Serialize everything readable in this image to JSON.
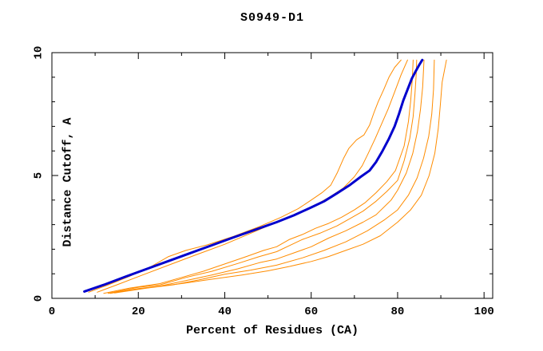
{
  "window": {
    "background": "#ffffff"
  },
  "chart_data": {
    "type": "line",
    "title": "S0949-D1",
    "xlabel": "Percent of Residues (CA)",
    "ylabel": "Distance Cutoff, A",
    "xlim": [
      0,
      102
    ],
    "ylim": [
      0,
      10
    ],
    "grid": false,
    "legend": "none",
    "axis_color": "#000000",
    "x_major_ticks": [
      0,
      20,
      40,
      60,
      80,
      100
    ],
    "x_tick_labels": [
      "0",
      "20",
      "40",
      "60",
      "80",
      "100"
    ],
    "x_minor_ticks": [
      10,
      30,
      50,
      70,
      90
    ],
    "y_major_ticks": [
      0,
      5,
      10
    ],
    "y_tick_labels": [
      "0",
      "5",
      "10"
    ],
    "y_minor_ticks": [
      1,
      2,
      3,
      4,
      6,
      7,
      8,
      9
    ],
    "series": [
      {
        "name": "orange-model-1",
        "color": "#FF8C00",
        "stroke_width": 1,
        "points": [
          [
            8.5,
            0.25
          ],
          [
            13,
            0.55
          ],
          [
            18,
            0.9
          ],
          [
            23,
            1.3
          ],
          [
            27,
            1.7
          ],
          [
            31,
            1.95
          ],
          [
            36,
            2.18
          ],
          [
            42,
            2.52
          ],
          [
            48,
            2.92
          ],
          [
            53,
            3.3
          ],
          [
            57,
            3.65
          ],
          [
            60,
            4.0
          ],
          [
            62.5,
            4.3
          ],
          [
            64.5,
            4.6
          ],
          [
            66,
            5.1
          ],
          [
            67.5,
            5.7
          ],
          [
            68.7,
            6.1
          ],
          [
            70.5,
            6.45
          ],
          [
            72.2,
            6.65
          ],
          [
            73.5,
            7.05
          ],
          [
            74.5,
            7.55
          ],
          [
            75.5,
            8.0
          ],
          [
            76.8,
            8.5
          ],
          [
            78,
            9.0
          ],
          [
            79.3,
            9.4
          ],
          [
            80.8,
            9.7
          ]
        ]
      },
      {
        "name": "orange-model-2",
        "color": "#FF8C00",
        "stroke_width": 1,
        "points": [
          [
            10.5,
            0.25
          ],
          [
            15,
            0.55
          ],
          [
            21,
            0.95
          ],
          [
            27,
            1.35
          ],
          [
            33,
            1.75
          ],
          [
            40,
            2.2
          ],
          [
            46,
            2.65
          ],
          [
            52,
            3.1
          ],
          [
            57,
            3.45
          ],
          [
            61,
            3.8
          ],
          [
            64.5,
            4.15
          ],
          [
            67.5,
            4.5
          ],
          [
            70,
            4.95
          ],
          [
            71.8,
            5.4
          ],
          [
            73.2,
            5.9
          ],
          [
            74.8,
            6.5
          ],
          [
            76.3,
            7.1
          ],
          [
            77.8,
            7.7
          ],
          [
            79.3,
            8.4
          ],
          [
            80.8,
            9.1
          ],
          [
            82.3,
            9.7
          ]
        ]
      },
      {
        "name": "orange-model-3",
        "color": "#FF8C00",
        "stroke_width": 1,
        "points": [
          [
            12,
            0.2
          ],
          [
            18,
            0.42
          ],
          [
            25,
            0.6
          ],
          [
            30,
            0.85
          ],
          [
            35,
            1.1
          ],
          [
            40,
            1.4
          ],
          [
            45,
            1.7
          ],
          [
            49,
            1.95
          ],
          [
            52,
            2.1
          ],
          [
            55,
            2.4
          ],
          [
            58,
            2.6
          ],
          [
            61,
            2.85
          ],
          [
            64,
            3.05
          ],
          [
            67,
            3.3
          ],
          [
            70,
            3.6
          ],
          [
            72.5,
            3.9
          ],
          [
            75,
            4.3
          ],
          [
            77.5,
            4.75
          ],
          [
            79.5,
            5.2
          ],
          [
            81.5,
            6.2
          ],
          [
            82.5,
            7.2
          ],
          [
            83,
            8.0
          ],
          [
            83.4,
            8.9
          ],
          [
            83.6,
            9.7
          ]
        ]
      },
      {
        "name": "orange-model-4",
        "color": "#FF8C00",
        "stroke_width": 1,
        "points": [
          [
            13,
            0.2
          ],
          [
            20,
            0.45
          ],
          [
            25,
            0.55
          ],
          [
            31,
            0.85
          ],
          [
            37,
            1.1
          ],
          [
            43,
            1.42
          ],
          [
            48,
            1.7
          ],
          [
            52,
            1.9
          ],
          [
            55,
            2.15
          ],
          [
            58,
            2.4
          ],
          [
            62,
            2.65
          ],
          [
            66,
            2.95
          ],
          [
            69,
            3.25
          ],
          [
            72,
            3.55
          ],
          [
            75,
            3.95
          ],
          [
            77.5,
            4.35
          ],
          [
            80,
            4.8
          ],
          [
            81.5,
            5.6
          ],
          [
            82.8,
            6.5
          ],
          [
            83.6,
            7.4
          ],
          [
            84,
            8.3
          ],
          [
            84.3,
            9.1
          ],
          [
            84.4,
            9.7
          ]
        ]
      },
      {
        "name": "orange-model-5",
        "color": "#FF8C00",
        "stroke_width": 1,
        "points": [
          [
            13.5,
            0.2
          ],
          [
            20,
            0.4
          ],
          [
            25,
            0.5
          ],
          [
            31,
            0.72
          ],
          [
            37,
            0.95
          ],
          [
            43,
            1.2
          ],
          [
            48,
            1.45
          ],
          [
            52,
            1.6
          ],
          [
            56,
            1.85
          ],
          [
            60,
            2.1
          ],
          [
            64,
            2.45
          ],
          [
            68,
            2.75
          ],
          [
            72,
            3.1
          ],
          [
            75,
            3.4
          ],
          [
            78.5,
            4.0
          ],
          [
            80,
            4.4
          ],
          [
            82,
            5.1
          ],
          [
            83.5,
            5.9
          ],
          [
            84.6,
            6.8
          ],
          [
            85.3,
            7.7
          ],
          [
            85.8,
            8.6
          ],
          [
            86.1,
            9.7
          ]
        ]
      },
      {
        "name": "orange-model-6",
        "color": "#FF8C00",
        "stroke_width": 1,
        "points": [
          [
            14.5,
            0.22
          ],
          [
            22,
            0.42
          ],
          [
            28,
            0.55
          ],
          [
            34,
            0.75
          ],
          [
            40,
            0.98
          ],
          [
            46,
            1.15
          ],
          [
            52,
            1.35
          ],
          [
            58,
            1.65
          ],
          [
            63,
            1.95
          ],
          [
            68,
            2.3
          ],
          [
            73,
            2.75
          ],
          [
            77,
            3.2
          ],
          [
            80,
            3.6
          ],
          [
            82.5,
            4.2
          ],
          [
            84.5,
            4.9
          ],
          [
            86,
            5.7
          ],
          [
            87.2,
            6.6
          ],
          [
            87.9,
            7.5
          ],
          [
            88.3,
            8.5
          ],
          [
            88.5,
            9.7
          ]
        ]
      },
      {
        "name": "orange-model-7",
        "color": "#FF8C00",
        "stroke_width": 1,
        "points": [
          [
            15,
            0.25
          ],
          [
            23,
            0.45
          ],
          [
            30,
            0.6
          ],
          [
            37,
            0.78
          ],
          [
            44,
            0.95
          ],
          [
            50,
            1.12
          ],
          [
            55,
            1.3
          ],
          [
            60,
            1.5
          ],
          [
            64,
            1.7
          ],
          [
            68,
            1.95
          ],
          [
            72,
            2.2
          ],
          [
            76,
            2.55
          ],
          [
            80,
            3.1
          ],
          [
            83,
            3.6
          ],
          [
            85.5,
            4.2
          ],
          [
            87.3,
            5.0
          ],
          [
            88.6,
            5.9
          ],
          [
            89.4,
            6.9
          ],
          [
            89.9,
            7.9
          ],
          [
            90.3,
            8.8
          ],
          [
            91.3,
            9.7
          ]
        ]
      },
      {
        "name": "highlighted-model-blue",
        "color": "#0000CD",
        "stroke_width": 3,
        "points": [
          [
            7.5,
            0.28
          ],
          [
            12,
            0.55
          ],
          [
            17,
            0.88
          ],
          [
            22,
            1.2
          ],
          [
            27,
            1.52
          ],
          [
            32,
            1.84
          ],
          [
            37,
            2.16
          ],
          [
            42,
            2.48
          ],
          [
            47,
            2.79
          ],
          [
            52,
            3.1
          ],
          [
            56,
            3.38
          ],
          [
            60,
            3.7
          ],
          [
            63,
            3.95
          ],
          [
            66,
            4.28
          ],
          [
            69,
            4.62
          ],
          [
            71.5,
            4.95
          ],
          [
            73.5,
            5.2
          ],
          [
            75,
            5.55
          ],
          [
            76.5,
            6.0
          ],
          [
            78,
            6.5
          ],
          [
            79.3,
            7.0
          ],
          [
            80.3,
            7.5
          ],
          [
            81.3,
            8.05
          ],
          [
            82.3,
            8.5
          ],
          [
            83.3,
            8.95
          ],
          [
            84.2,
            9.25
          ],
          [
            85,
            9.5
          ],
          [
            85.7,
            9.7
          ]
        ]
      }
    ]
  }
}
